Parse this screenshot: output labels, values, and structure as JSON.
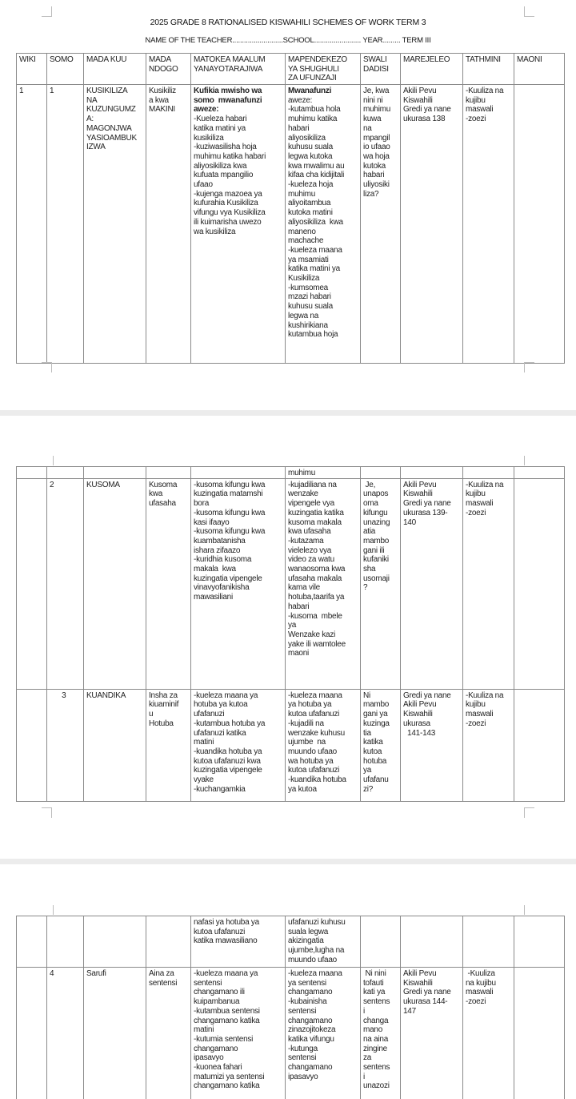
{
  "document": {
    "title": "2025 GRADE 8 RATIONALISED KISWAHILI SCHEMES OF WORK TERM 3",
    "subtitle": "NAME OF THE TEACHER..........................SCHOOL........................ YEAR......... TERM III"
  },
  "table": {
    "headers": [
      "WIKI",
      "SOMO",
      "MADA KUU",
      "MADA\nNDOGO",
      "MATOKEA MAALUM\nYANAYOTARAJIWA",
      "MAPENDEKEZO\nYA SHUGHULI\nZA UFUNZAJI",
      "SWALI\nDADISI",
      "MAREJELEO",
      "TATHMINI",
      "MAONI"
    ]
  },
  "pages": [
    {
      "rows": [
        {
          "cells": [
            "1",
            "1",
            "KUSIKILIZA\nNA\nKUZUNGUMZ\nA:\nMAGONJWA\nYASIOAMBUK\nIZWA",
            "Kusikiliz\na kwa\nMAKINI",
            {
              "b": "Kufikia mwisho wa\nsomo  mwanafunzi\naweze:",
              "t": "-Kueleza habari\nkatika matini ya\nkusikiliza\n-kuziwasilisha hoja\nmuhimu katika habari\naliyosikiliza kwa\nkufuata mpangilio\nufaao\n-kujenga mazoea ya\nkufurahia Kusikiliza\nvifungu vya Kusikiliza\nili kuimarisha uwezo\nwa kusikiliza"
            },
            {
              "b": "Mwanafunzi",
              "t": "aweze:\n-kutambua hola\nmuhimu katika\nhabari\naliyosikiliza\nkuhusu suala\nlegwa kutoka\nkwa mwalimu au\nkifaa cha kidijitali\n-kueleza hoja\nmuhimu\naliyoitambua\nkutoka matini\naliyosikiliza  kwa\nmaneno\nmachache\n-kueleza maana\nya msamiati\nkatika matini ya\nKusikiliza\n-kumsomea\nmzazi habari\nkuhusu suala\nlegwa na\nkushirikiana\nkutambua hoja"
            },
            "Je, kwa\nnini ni\nmuhimu\nkuwa\nna\nmpangil\nio ufaao\nwa hoja\nkutoka\nhabari\nuliyosiki\nliza?",
            "Akili Pevu\nKiswahili\nGredi ya nane\nukurasa 138",
            "-Kuuliza na\nkujibu\nmaswali\n-zoezi",
            ""
          ]
        }
      ]
    },
    {
      "rows": [
        {
          "cells": [
            "",
            "",
            "",
            "",
            "",
            "muhimu",
            "",
            "",
            "",
            ""
          ]
        },
        {
          "cells": [
            "",
            "2",
            "KUSOMA",
            "Kusoma\nkwa\nufasaha",
            "-kusoma kifungu kwa\nkuzingatia matamshi\nbora\n-kusoma kifungu kwa\nkasi ifaayo\n-kusoma kifungu kwa\nkuambatanisha\nishara zifaazo\n-kuridhia kusoma\nmakala  kwa\nkuzingatia vipengele\nvinavyofanikisha\nmawasiliani",
            "-kujadiliana na\nwenzake\nvipengele vya\nkuzingatia katika\nkusoma makala\nkwa ufasaha\n-kutazama\nvielelezo vya\nvideo za watu\nwanaosoma kwa\nufasaha makala\nkama vile\nhotuba,taarifa ya\nhabari\n-kusoma  mbele\nya\nWenzake kazi\nyake ili wamtolee\nmaoni",
            " Je,\nunapos\noma\nkifungu\nunazing\natia\nmambo\ngani ili\nkufaniki\nsha\nusomaji\n?",
            "Akili Pevu\nKiswahili\nGredi ya nane\nukurasa 139-\n140",
            "-Kuuliza na\nkujibu\nmaswali\n-zoezi",
            ""
          ]
        },
        {
          "cells": [
            "",
            "      3",
            "KUANDIKA",
            "Insha za\nkiuaminif\nu\nHotuba",
            "-kueleza maana ya\nhotuba ya kutoa\nufafanuzi\n-kutambua hotuba ya\nufafanuzi katika\nmatini\n-kuandika hotuba ya\nkutoa ufafanuzi kwa\nkuzingatia vipengele\nvyake\n-kuchangamkia",
            "-kueleza maana\nya hotuba ya\nkutoa ufafanuzi\n-kujadili na\nwenzake kuhusu\nujumbe  na\nmuundo ufaao\nwa hotuba ya\nkutoa ufafanuzi\n-kuandika hotuba\nya kutoa",
            "Ni\nmambo\ngani ya\nkuzinga\ntia\nkatika\nkutoa\nhotuba\nya\nufafanu\nzi?",
            "Gredi ya nane\nAkili Pevu\nKiswahili\nukurasa\n  141-143",
            "-Kuuliza na\nkujibu\nmaswali\n-zoezi",
            ""
          ]
        }
      ]
    },
    {
      "rows": [
        {
          "cells": [
            "",
            "",
            "",
            "",
            "nafasi ya hotuba ya\nkutoa ufafanuzi\nkatika mawasiliano",
            "ufafanuzi kuhusu\nsuala legwa\nakizingatia\nujumbe,lugha na\nmuundo ufaao",
            "",
            "",
            "",
            ""
          ]
        },
        {
          "cells": [
            "",
            "4",
            "Sarufi",
            "Aina za\nsentensi",
            "-kueleza maana ya\nsentensi\nchangamano ili\nkuipambanua\n-kutambua sentensi\nchangamano katika\nmatini\n-kutumia sentensi\nchangamano\nipasavyo\n-kuonea fahari\nmatumizi ya sentensi\nchangamano katika",
            "-kueleza maana\nya sentensi\nchangamano\n-kubainisha\nsentensi\nchangamano\nzinazojitokeza\nkatika vifungu\n-kutunga\nsentensi\nchangamano\nipasavyo",
            " Ni nini\ntofauti\nkati ya\nsentens\ni\nchanga\nmano\nna aina\nzingine\nza\nsentens\ni\nunazozi",
            "Akili Pevu\nKiswahili\nGredi ya nane\nukurasa 144-\n147",
            " -Kuuliza\nna kujibu\nmaswali\n-zoezi",
            ""
          ]
        }
      ]
    }
  ]
}
